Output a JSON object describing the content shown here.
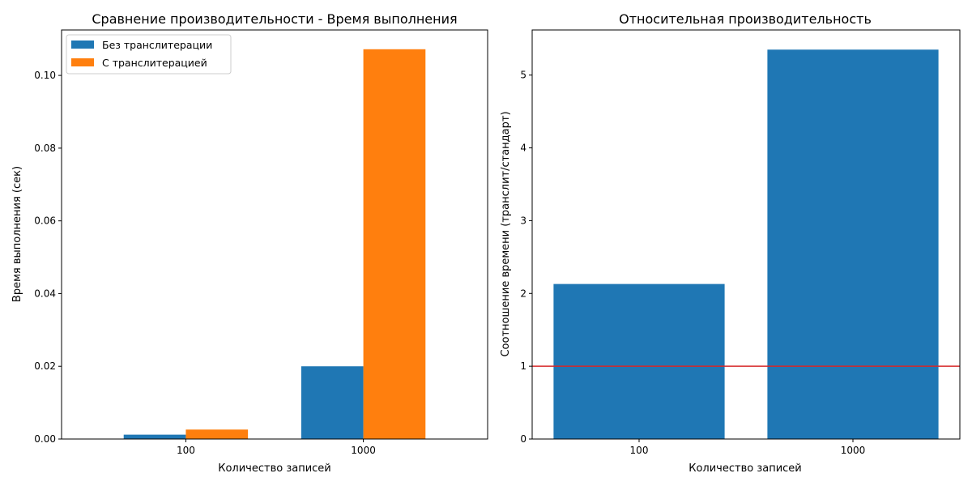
{
  "colors": {
    "series_a": "#1f77b4",
    "series_b": "#ff7f0e",
    "reference_line": "#d62728",
    "axis": "#000000"
  },
  "chart_data": [
    {
      "type": "bar",
      "title": "Сравнение производительности - Время выполнения",
      "xlabel": "Количество записей",
      "ylabel": "Время выполнения (сек)",
      "categories": [
        "100",
        "1000"
      ],
      "series": [
        {
          "name": "Без транслитерации",
          "values": [
            0.0012,
            0.02
          ]
        },
        {
          "name": "С транслитерацией",
          "values": [
            0.0026,
            0.1072
          ]
        }
      ],
      "ylim": [
        0,
        0.1125
      ],
      "yticks": [
        0.0,
        0.02,
        0.04,
        0.06,
        0.08,
        0.1
      ],
      "ytick_labels": [
        "0.00",
        "0.02",
        "0.04",
        "0.06",
        "0.08",
        "0.10"
      ],
      "legend": "top-left",
      "grid": false
    },
    {
      "type": "bar",
      "title": "Относительная производительность",
      "xlabel": "Количество записей",
      "ylabel": "Соотношение времени (транслит/стандарт)",
      "categories": [
        "100",
        "1000"
      ],
      "values": [
        2.13,
        5.35
      ],
      "ylim": [
        0,
        5.62
      ],
      "yticks": [
        0,
        1,
        2,
        3,
        4,
        5
      ],
      "ytick_labels": [
        "0",
        "1",
        "2",
        "3",
        "4",
        "5"
      ],
      "reference_line": 1,
      "grid": false
    }
  ]
}
